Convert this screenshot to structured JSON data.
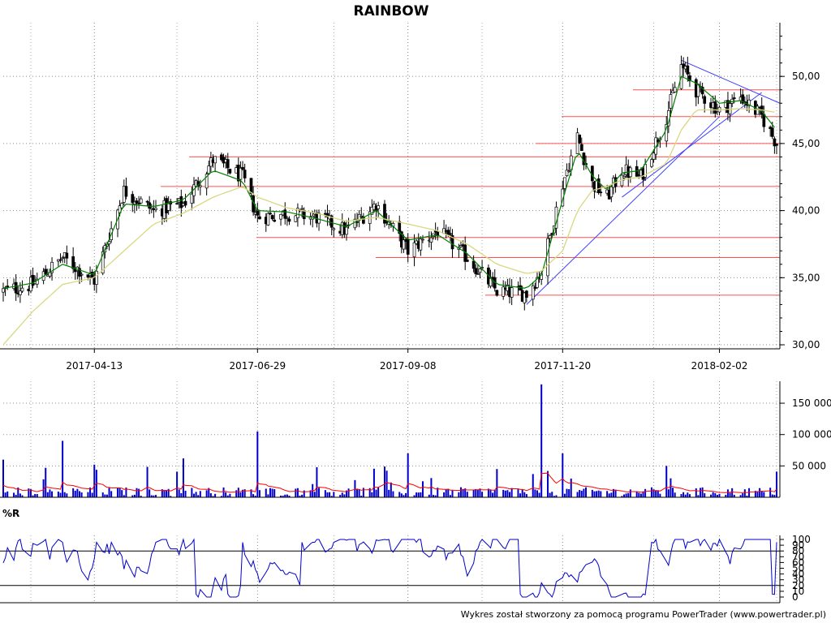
{
  "chart_data": [
    {
      "type": "line",
      "panel": "price",
      "title": "RAINBOW",
      "subtype": "candlestick",
      "x_tick_labels": [
        "2017-04-13",
        "2017-06-29",
        "2017-09-08",
        "2017-11-20",
        "2018-02-02"
      ],
      "y_tick_labels": [
        "30,00",
        "35,00",
        "40,00",
        "45,00",
        "50,00"
      ],
      "ylim": [
        29.7,
        54.0
      ],
      "grid": true,
      "series": [
        {
          "color": "#000000",
          "x": [
            "2017-03-01",
            "2017-03-15",
            "2017-03-29",
            "2017-04-13",
            "2017-04-27",
            "2017-05-11",
            "2017-05-25",
            "2017-06-08",
            "2017-06-22",
            "2017-06-29",
            "2017-07-13",
            "2017-07-27",
            "2017-08-10",
            "2017-08-24",
            "2017-09-08",
            "2017-09-22",
            "2017-10-06",
            "2017-10-20",
            "2017-11-03",
            "2017-11-10",
            "2017-11-20",
            "2017-11-27",
            "2017-12-04",
            "2017-12-11",
            "2017-12-18",
            "2017-12-27",
            "2018-01-08",
            "2018-01-15",
            "2018-01-22",
            "2018-02-02",
            "2018-02-12",
            "2018-02-22",
            "2018-03-01"
          ],
          "values": [
            34.0,
            34.5,
            36.5,
            34.8,
            41.5,
            40.0,
            40.5,
            43.8,
            42.5,
            39.5,
            39.8,
            39.5,
            38.5,
            40.5,
            37.0,
            38.5,
            36.5,
            34.0,
            33.8,
            35.5,
            42.0,
            45.5,
            42.0,
            41.0,
            43.0,
            42.5,
            47.0,
            50.8,
            49.0,
            47.5,
            48.5,
            47.0,
            45.0
          ]
        },
        {
          "color": "#008000",
          "values": [
            34.2,
            34.6,
            36.0,
            35.2,
            40.5,
            40.3,
            40.8,
            43.0,
            42.2,
            40.0,
            39.9,
            39.4,
            38.8,
            40.0,
            37.8,
            38.2,
            36.8,
            34.5,
            34.2,
            35.2,
            40.8,
            44.5,
            42.6,
            41.5,
            42.8,
            43.0,
            46.0,
            50.0,
            49.5,
            48.0,
            48.2,
            47.4,
            46.0
          ]
        },
        {
          "color": "#d8d880",
          "values": [
            30.0,
            32.5,
            34.5,
            35.0,
            37.0,
            39.0,
            39.8,
            41.0,
            41.8,
            41.0,
            40.2,
            39.8,
            39.2,
            39.5,
            39.0,
            38.5,
            37.5,
            36.0,
            35.3,
            35.5,
            37.0,
            40.0,
            41.5,
            41.8,
            42.3,
            42.5,
            43.5,
            46.0,
            47.5,
            47.5,
            47.6,
            47.5,
            47.3
          ]
        }
      ],
      "support_resistance": [
        45.0,
        49.0,
        47.0,
        44.0,
        41.8,
        38.0,
        36.5,
        33.7
      ],
      "trendlines": "blue"
    },
    {
      "type": "bar",
      "panel": "volume",
      "y_tick_labels": [
        "50 000",
        "100 000",
        "150 000"
      ],
      "ylim": [
        0,
        185000
      ],
      "bar_color": "#0000cc",
      "ma_color": "#ff0000",
      "spike_x": [
        "2017-03-01",
        "2017-03-29",
        "2017-04-13",
        "2017-05-25",
        "2017-06-29",
        "2017-07-27",
        "2017-09-08",
        "2017-10-20",
        "2017-11-10",
        "2017-11-20",
        "2018-01-08"
      ],
      "spike_values": [
        60000,
        90000,
        52000,
        62000,
        105000,
        48000,
        70000,
        45000,
        180000,
        70000,
        50000
      ]
    },
    {
      "type": "line",
      "panel": "williams_r",
      "label": "%R",
      "y_tick_labels": [
        "0",
        "10",
        "20",
        "30",
        "40",
        "50",
        "60",
        "70",
        "80",
        "90",
        "100"
      ],
      "ylim": [
        0,
        100
      ],
      "reference_lines": [
        20,
        80
      ],
      "color": "#0000cc"
    }
  ],
  "footer": "Wykres został stworzony za pomocą programu PowerTrader (www.powertrader.pl)"
}
